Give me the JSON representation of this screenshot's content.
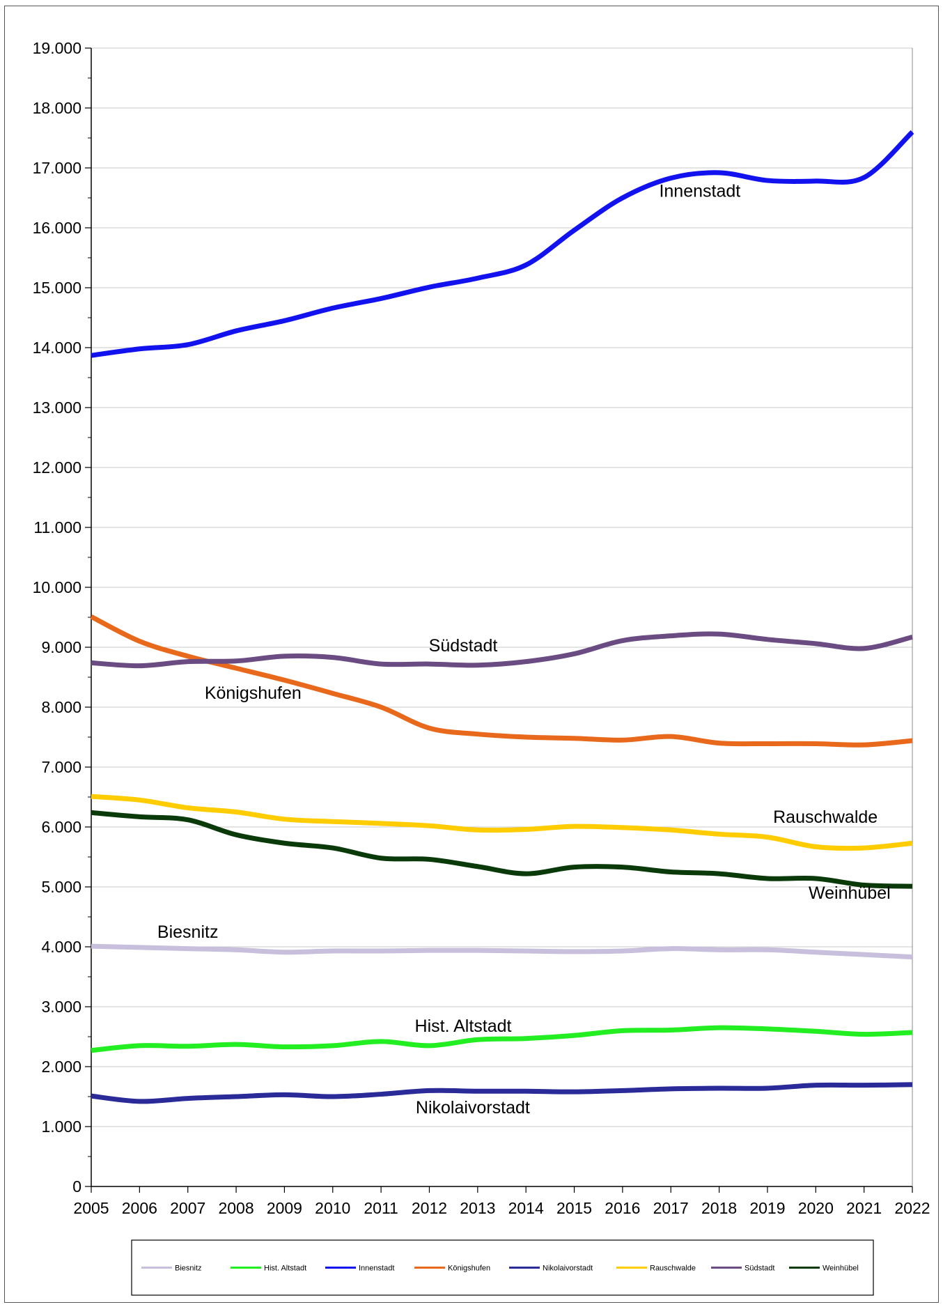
{
  "chart_data": {
    "type": "line",
    "title": "",
    "xlabel": "",
    "ylabel": "",
    "ylim": [
      0,
      19000
    ],
    "yticks": [
      0,
      1000,
      2000,
      3000,
      4000,
      5000,
      6000,
      7000,
      8000,
      9000,
      10000,
      11000,
      12000,
      13000,
      14000,
      15000,
      16000,
      17000,
      18000,
      19000
    ],
    "ytick_labels": [
      "0",
      "1.000",
      "2.000",
      "3.000",
      "4.000",
      "5.000",
      "6.000",
      "7.000",
      "8.000",
      "9.000",
      "10.000",
      "11.000",
      "12.000",
      "13.000",
      "14.000",
      "15.000",
      "16.000",
      "17.000",
      "18.000",
      "19.000"
    ],
    "categories": [
      "2005",
      "2006",
      "2007",
      "2008",
      "2009",
      "2010",
      "2011",
      "2012",
      "2013",
      "2014",
      "2015",
      "2016",
      "2017",
      "2018",
      "2019",
      "2020",
      "2021",
      "2022"
    ],
    "grid": "horizontal",
    "legend_position": "bottom",
    "series": [
      {
        "name": "Biesnitz",
        "color": "#c8bfdc",
        "label": "Biesnitz",
        "values": [
          4010,
          3990,
          3970,
          3950,
          3910,
          3930,
          3930,
          3940,
          3940,
          3930,
          3920,
          3930,
          3970,
          3950,
          3950,
          3910,
          3870,
          3830
        ]
      },
      {
        "name": "Hist. Altstadt",
        "color": "#22ee22",
        "label": "Hist. Altstadt",
        "values": [
          2270,
          2350,
          2340,
          2370,
          2330,
          2350,
          2420,
          2350,
          2450,
          2470,
          2520,
          2600,
          2610,
          2650,
          2630,
          2590,
          2540,
          2570
        ]
      },
      {
        "name": "Innenstadt",
        "color": "#1212ee",
        "label": "Innenstadt",
        "values": [
          13870,
          13980,
          14050,
          14280,
          14450,
          14660,
          14820,
          15010,
          15160,
          15380,
          15960,
          16500,
          16830,
          16920,
          16790,
          16780,
          16840,
          17600
        ]
      },
      {
        "name": "Königshufen",
        "color": "#e8691c",
        "label": "Königshufen",
        "values": [
          9510,
          9100,
          8850,
          8650,
          8450,
          8230,
          8000,
          7650,
          7550,
          7500,
          7480,
          7450,
          7510,
          7400,
          7390,
          7390,
          7370,
          7440
        ]
      },
      {
        "name": "Nikolaivorstadt",
        "color": "#2a2a99",
        "label": "Nikolaivorstadt",
        "values": [
          1510,
          1420,
          1470,
          1500,
          1530,
          1500,
          1540,
          1600,
          1590,
          1590,
          1580,
          1600,
          1630,
          1640,
          1640,
          1690,
          1690,
          1700
        ]
      },
      {
        "name": "Rauschwalde",
        "color": "#ffcc00",
        "label": "Rauschwalde",
        "values": [
          6510,
          6450,
          6320,
          6250,
          6130,
          6090,
          6060,
          6020,
          5950,
          5960,
          6010,
          5990,
          5950,
          5880,
          5830,
          5670,
          5650,
          5730
        ]
      },
      {
        "name": "Südstadt",
        "color": "#6a4c82",
        "label": "Südstadt",
        "values": [
          8740,
          8690,
          8760,
          8770,
          8850,
          8830,
          8720,
          8720,
          8700,
          8760,
          8890,
          9110,
          9190,
          9220,
          9130,
          9060,
          8980,
          9170
        ]
      },
      {
        "name": "Weinhübel",
        "color": "#0a3a0a",
        "label": "Weinhübel",
        "values": [
          6240,
          6170,
          6120,
          5870,
          5730,
          5650,
          5480,
          5460,
          5340,
          5220,
          5330,
          5330,
          5250,
          5220,
          5140,
          5140,
          5030,
          5010
        ]
      }
    ]
  }
}
